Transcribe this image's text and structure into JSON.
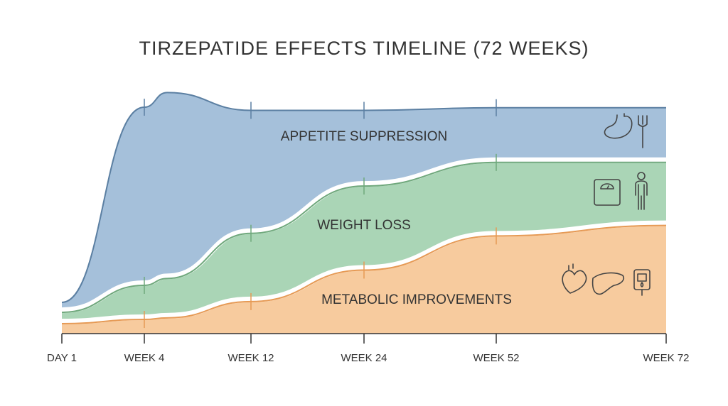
{
  "chart_data": {
    "type": "stacked-area",
    "title": "TIRZEPATIDE EFFECTS TIMELINE (72 WEEKS)",
    "categories": [
      "DAY 1",
      "WEEK 4",
      null,
      "WEEK 12",
      "WEEK 24",
      "WEEK 52",
      "WEEK 72"
    ],
    "ylim": [
      0,
      100
    ],
    "series": [
      {
        "name": "METABOLIC IMPROVEMENTS",
        "color": "#f7cb9e",
        "line_color": "#e69a55",
        "values": [
          4.6,
          6.2,
          6.8,
          13,
          25,
          38,
          42
        ]
      },
      {
        "name": "WEIGHT LOSS",
        "color": "#aad5b6",
        "line_color": "#6fa87c",
        "values": [
          4.3,
          13,
          15,
          26,
          32,
          28,
          24
        ]
      },
      {
        "name": "APPETITE SUPPRESSION",
        "color": "#a5c0da",
        "line_color": "#5b7fa2",
        "values": [
          3,
          67,
          70,
          46,
          28,
          20,
          20
        ]
      }
    ]
  }
}
